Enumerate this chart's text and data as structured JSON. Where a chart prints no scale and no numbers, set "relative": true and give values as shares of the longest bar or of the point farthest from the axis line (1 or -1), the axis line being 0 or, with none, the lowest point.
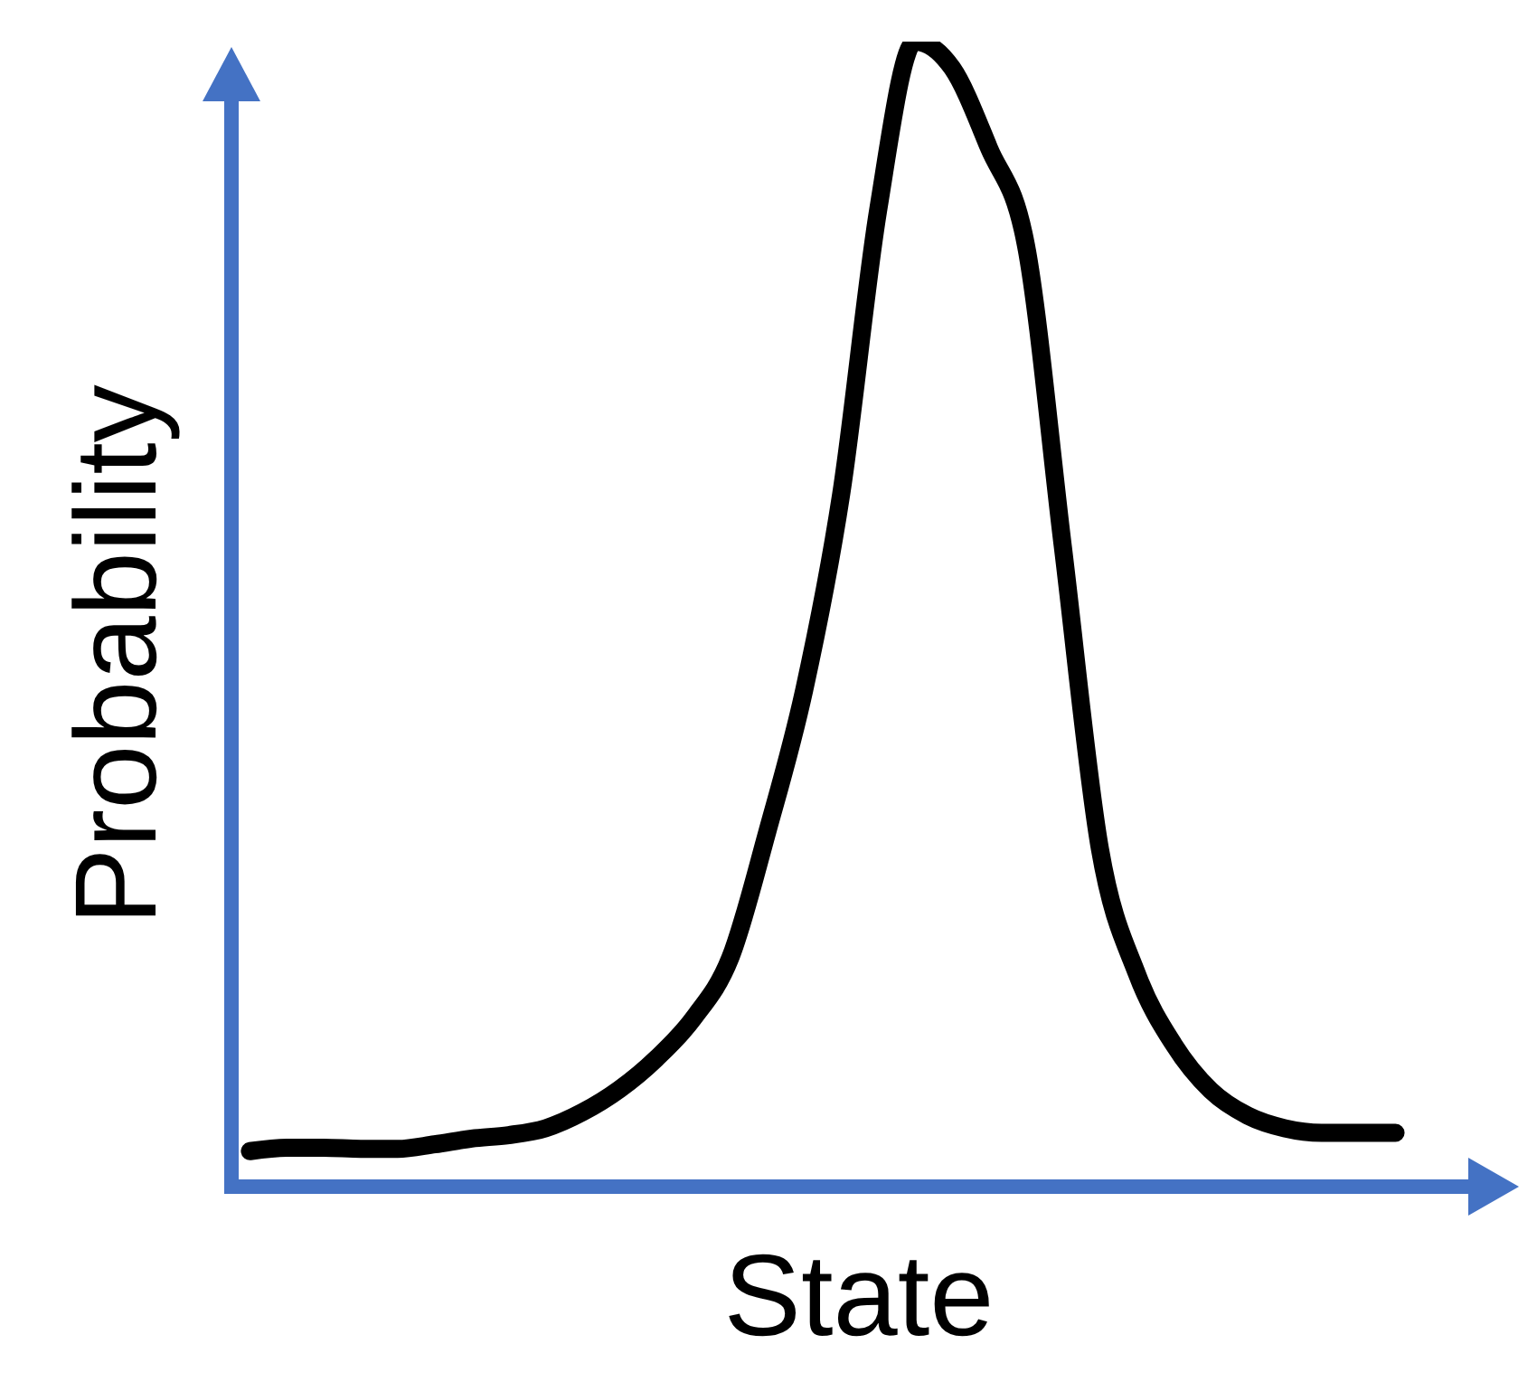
{
  "chart_data": {
    "type": "line",
    "relative": true,
    "xlabel": "State",
    "ylabel": "Probability",
    "categories": [
      null,
      null,
      null,
      null,
      null,
      null,
      null,
      null,
      null,
      null,
      null,
      null,
      null,
      null,
      null,
      null,
      null,
      null,
      null,
      null,
      null,
      null,
      null,
      null,
      null,
      null,
      null,
      null,
      null,
      null,
      null,
      null
    ],
    "series": [
      {
        "color": "#000000",
        "values": [
          0.031,
          0.034,
          0.034,
          0.033,
          0.033,
          0.037,
          0.042,
          0.045,
          0.051,
          0.065,
          0.085,
          0.112,
          0.147,
          0.2,
          0.31,
          0.434,
          0.605,
          0.853,
          1,
          0.977,
          0.907,
          0.822,
          0.558,
          0.295,
          0.186,
          0.124,
          0.084,
          0.062,
          0.051,
          0.047,
          0.047,
          0.047
        ]
      }
    ],
    "grid": false,
    "legend": false,
    "marker": "none",
    "line_style": "solid",
    "tick_labels": false
  }
}
